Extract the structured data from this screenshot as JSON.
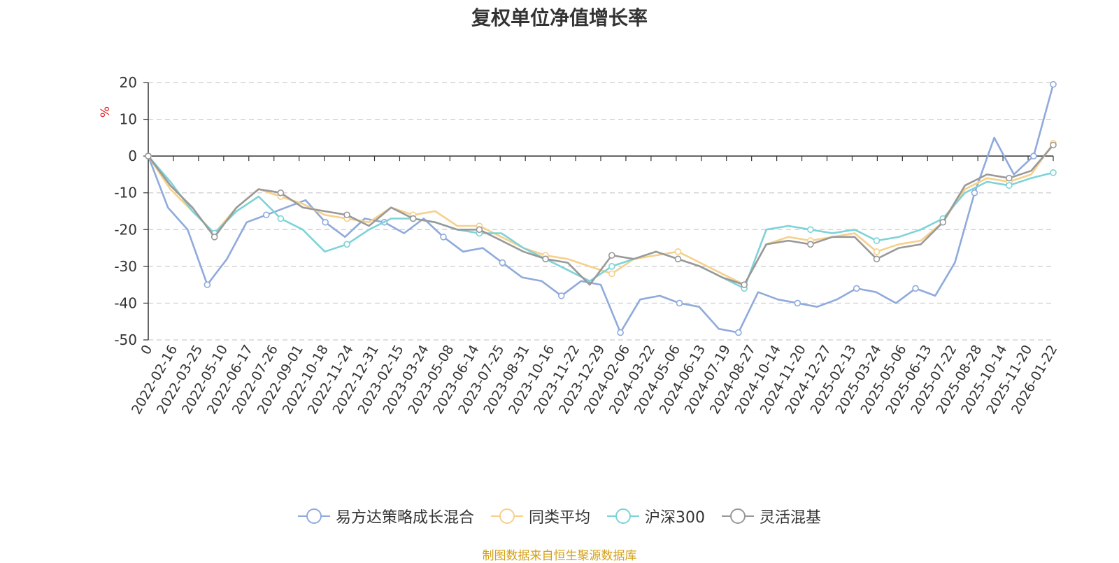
{
  "chart_data": {
    "type": "line",
    "title": "复权单位净值增长率",
    "ylabel": "%",
    "ylim": [
      -50,
      20
    ],
    "yticks": [
      20,
      10,
      0,
      -10,
      -20,
      -30,
      -40,
      -50
    ],
    "grid": true,
    "legend_position": "bottom",
    "x_tick_labels": [
      "0",
      "2022-02-16",
      "2022-03-25",
      "2022-05-10",
      "2022-06-17",
      "2022-07-26",
      "2022-09-01",
      "2022-10-18",
      "2022-11-24",
      "2022-12-31",
      "2023-02-15",
      "2023-03-24",
      "2023-05-08",
      "2023-06-14",
      "2023-07-25",
      "2023-08-31",
      "2023-10-16",
      "2023-11-22",
      "2023-12-29",
      "2024-02-06",
      "2024-03-22",
      "2024-05-06",
      "2024-06-13",
      "2024-07-19",
      "2024-08-27",
      "2024-10-14",
      "2024-11-20",
      "2024-12-27",
      "2025-02-13",
      "2025-03-24",
      "2025-05-06",
      "2025-06-13",
      "2025-07-22",
      "2025-08-28",
      "2025-10-14",
      "2025-11-20",
      "2026-01-22"
    ],
    "series": [
      {
        "name": "易方达策略成长混合",
        "color": "#8faadc",
        "values": [
          0,
          -14,
          -20,
          -35,
          -28,
          -18,
          -16,
          -14,
          -12,
          -18,
          -22,
          -17,
          -18,
          -21,
          -17,
          -22,
          -26,
          -25,
          -29,
          -33,
          -34,
          -38,
          -34,
          -35,
          -48,
          -39,
          -38,
          -40,
          -41,
          -47,
          -48,
          -37,
          -39,
          -40,
          -41,
          -39,
          -36,
          -37,
          -40,
          -36,
          -38,
          -29,
          -10,
          5,
          -5,
          0,
          19.5
        ]
      },
      {
        "name": "同类平均",
        "color": "#f7d08a",
        "values": [
          0,
          -9,
          -15,
          -21,
          -14,
          -9,
          -11,
          -13,
          -16,
          -17,
          -18,
          -14,
          -16,
          -15,
          -19,
          -19,
          -22,
          -25,
          -27,
          -28,
          -30,
          -32,
          -28,
          -27,
          -26,
          -29,
          -32,
          -35,
          -24,
          -22,
          -23,
          -22,
          -21,
          -26,
          -24,
          -23,
          -18,
          -9,
          -6,
          -7,
          -5,
          3.5
        ]
      },
      {
        "name": "沪深300",
        "color": "#7dd3d8",
        "values": [
          0,
          -7,
          -15,
          -21,
          -15,
          -11,
          -17,
          -20,
          -26,
          -24,
          -20,
          -17,
          -17,
          -18,
          -20,
          -21,
          -21,
          -25,
          -28,
          -31,
          -34,
          -30,
          -28,
          -26,
          -28,
          -30,
          -33,
          -36,
          -20,
          -19,
          -20,
          -21,
          -20,
          -23,
          -22,
          -20,
          -17,
          -10,
          -7,
          -8,
          -6,
          -4.5
        ]
      },
      {
        "name": "灵活混基",
        "color": "#999999",
        "values": [
          0,
          -8,
          -14,
          -22,
          -14,
          -9,
          -10,
          -14,
          -15,
          -16,
          -19,
          -14,
          -17,
          -18,
          -20,
          -20,
          -23,
          -26,
          -28,
          -29,
          -35,
          -27,
          -28,
          -26,
          -28,
          -30,
          -33,
          -35,
          -24,
          -23,
          -24,
          -22,
          -22,
          -28,
          -25,
          -24,
          -18,
          -8,
          -5,
          -6,
          -4,
          3
        ]
      }
    ]
  },
  "source_note": "制图数据来自恒生聚源数据库"
}
